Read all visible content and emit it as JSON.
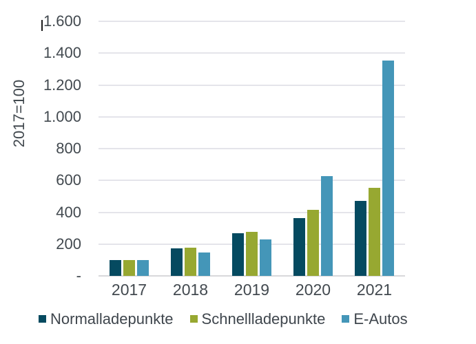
{
  "chart_data": {
    "type": "bar",
    "title": "",
    "categories": [
      "2017",
      "2018",
      "2019",
      "2020",
      "2021"
    ],
    "series": [
      {
        "name": "Normalladepunkte",
        "color": "#054a60",
        "values": [
          100,
          172,
          267,
          362,
          470
        ]
      },
      {
        "name": "Schnellladepunkte",
        "color": "#97a831",
        "values": [
          100,
          178,
          277,
          415,
          555
        ]
      },
      {
        "name": "E-Autos",
        "color": "#4496b8",
        "values": [
          100,
          147,
          228,
          625,
          1352
        ]
      }
    ],
    "xlabel": "",
    "ylabel": "2017=100",
    "ylim": [
      0,
      1600
    ],
    "ytick_interval": 200,
    "ytick_labels": [
      "-",
      "200",
      "400",
      "600",
      "800",
      "1.000",
      "1.200",
      "1.400",
      "1.600"
    ],
    "grid": true,
    "legend_position": "bottom",
    "number_format": "de-DE"
  },
  "colors": {
    "background": "#ffffff",
    "gridline": "#e4e4ea",
    "axis_line": "#d8d8da",
    "tick_text": "#42494f",
    "legend_text": "#3f464d"
  }
}
